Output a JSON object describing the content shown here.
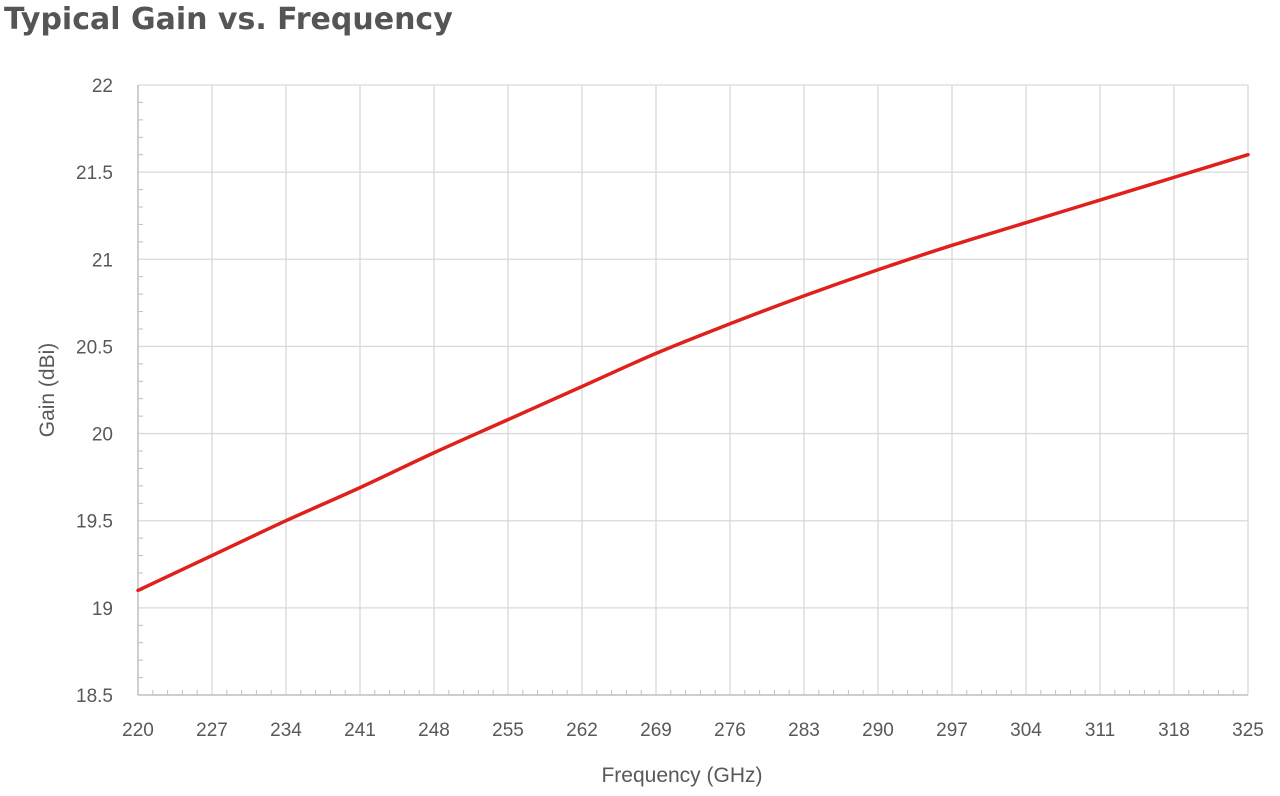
{
  "chart_data": {
    "type": "line",
    "title": "Typical Gain vs. Frequency",
    "xlabel": "Frequency (GHz)",
    "ylabel": "Gain (dBi)",
    "xlim": [
      220,
      325
    ],
    "ylim": [
      18.5,
      22
    ],
    "x_ticks": [
      "220",
      "227",
      "234",
      "241",
      "248",
      "255",
      "262",
      "269",
      "276",
      "283",
      "290",
      "297",
      "304",
      "311",
      "318",
      "325"
    ],
    "y_ticks": [
      "18.5",
      "19",
      "19.5",
      "20",
      "20.5",
      "21",
      "21.5",
      "22"
    ],
    "grid": true,
    "legend": "none",
    "series": [
      {
        "color": "#e0201b",
        "x": [
          220,
          227,
          234,
          241,
          248,
          255,
          262,
          269,
          276,
          283,
          290,
          297,
          304,
          311,
          318,
          325
        ],
        "y": [
          19.1,
          19.3,
          19.5,
          19.69,
          19.89,
          20.08,
          20.27,
          20.46,
          20.63,
          20.79,
          20.94,
          21.08,
          21.21,
          21.34,
          21.47,
          21.6
        ]
      }
    ]
  }
}
